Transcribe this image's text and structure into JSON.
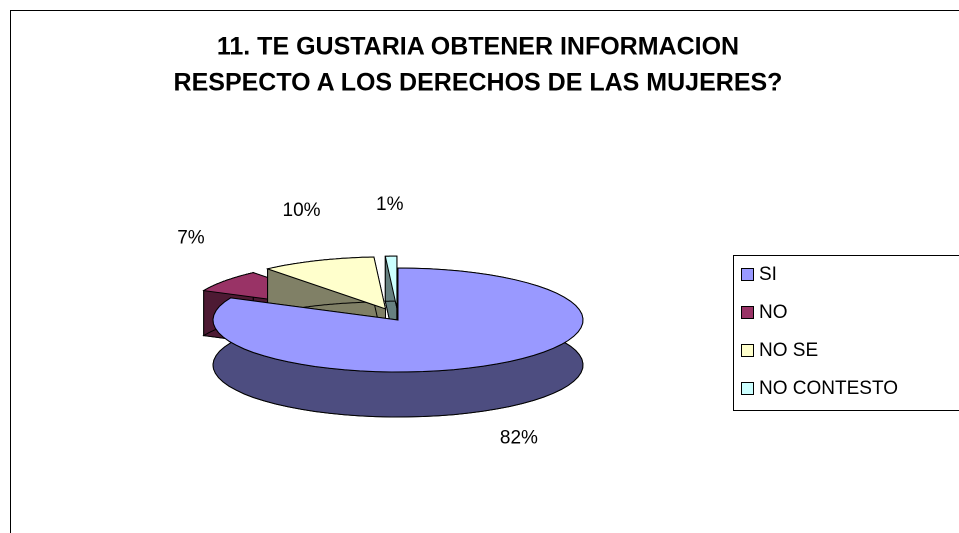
{
  "chart_data": {
    "type": "pie",
    "title": [
      "11. TE GUSTARIA OBTENER INFORMACION",
      "RESPECTO A LOS DERECHOS DE LAS MUJERES?"
    ],
    "categories": [
      "SI",
      "NO",
      "NO SE",
      "NO CONTESTO"
    ],
    "values": [
      82,
      7,
      10,
      1
    ],
    "value_labels": [
      "82%",
      "7%",
      "10%",
      "1%"
    ],
    "colors": [
      "#9999ff",
      "#993366",
      "#ffffcc",
      "#ccffff"
    ],
    "legend": "right"
  }
}
